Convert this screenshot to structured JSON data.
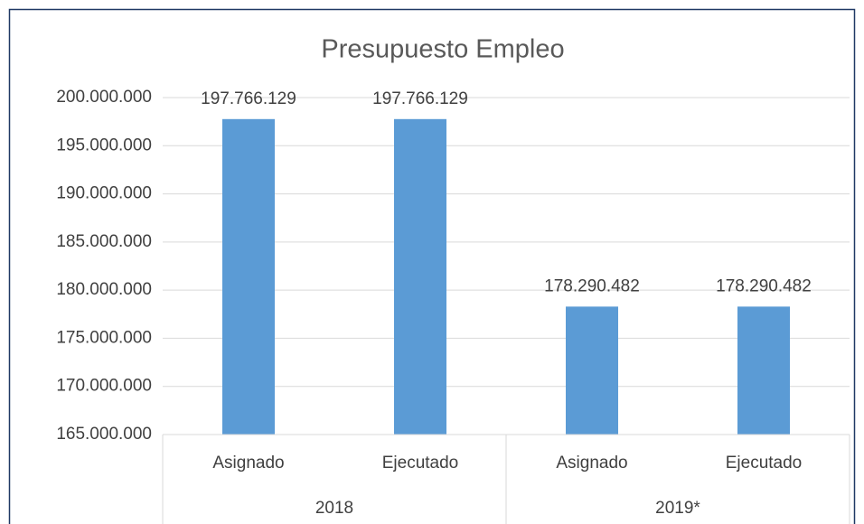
{
  "chart_data": {
    "type": "bar",
    "title": "Presupuesto Empleo",
    "categories": [
      "Asignado",
      "Ejecutado",
      "Asignado",
      "Ejecutado"
    ],
    "groups": [
      "2018",
      "2019*"
    ],
    "values": [
      197766129,
      197766129,
      178290482,
      178290482
    ],
    "value_labels": [
      "197.766.129",
      "197.766.129",
      "178.290.482",
      "178.290.482"
    ],
    "color": "#5b9bd5",
    "ylim": [
      165000000,
      200000000
    ],
    "yticks": [
      {
        "value": 165000000,
        "label": "165.000.000"
      },
      {
        "value": 170000000,
        "label": "170.000.000"
      },
      {
        "value": 175000000,
        "label": "175.000.000"
      },
      {
        "value": 180000000,
        "label": "180.000.000"
      },
      {
        "value": 185000000,
        "label": "185.000.000"
      },
      {
        "value": 190000000,
        "label": "190.000.000"
      },
      {
        "value": 195000000,
        "label": "195.000.000"
      },
      {
        "value": 200000000,
        "label": "200.000.000"
      }
    ],
    "grid": true
  }
}
